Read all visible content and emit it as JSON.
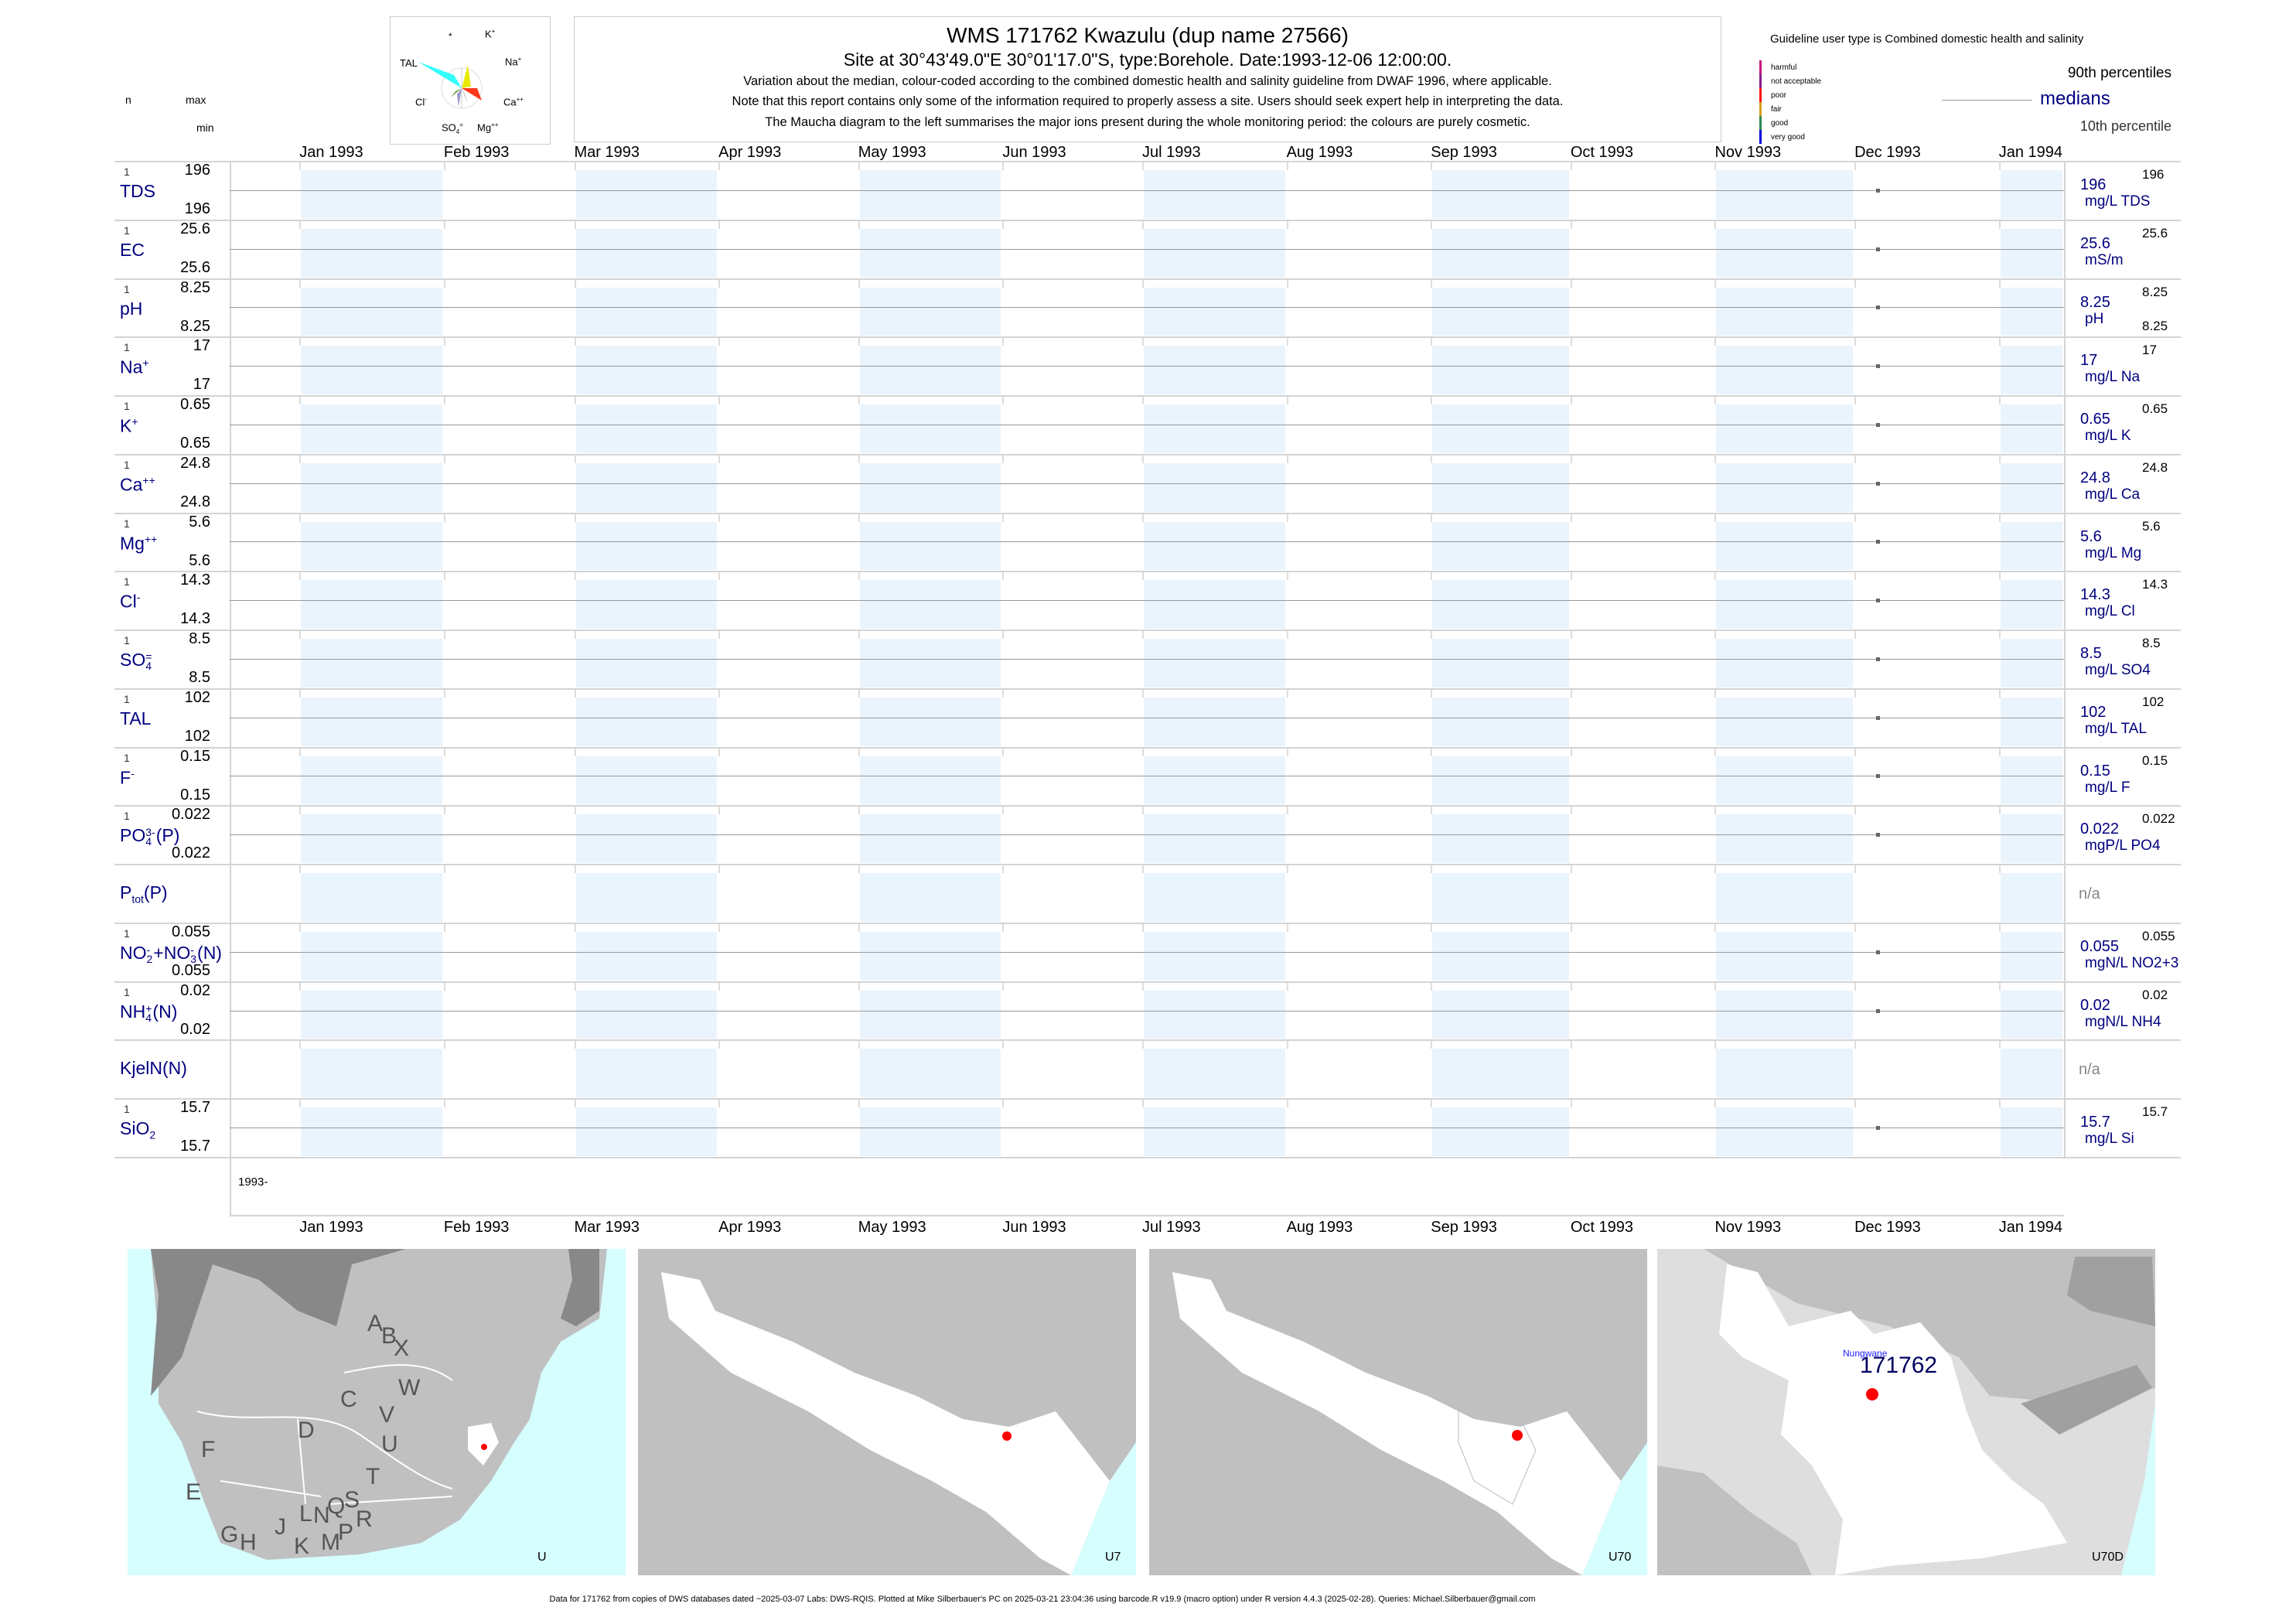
{
  "header": {
    "title": "WMS 171762  Kwazulu (dup name 27566)",
    "subtitle": "Site at 30°43'49.0\"E 30°01'17.0\"S, type:Borehole. Date:1993-12-06 12:00:00.",
    "note1": "Variation about the median,  colour-coded according to the combined domestic health and salinity guideline from DWAF 1996, where applicable.",
    "note2": "Note that this report contains only some of the information required to properly assess a site. Users should seek expert help in interpreting the data.",
    "note3": "The Maucha diagram to the left summarises the major ions present during the whole monitoring period: the colours are purely cosmetic."
  },
  "maucha": {
    "labels": {
      "star": "*",
      "k": "K",
      "k_sup": "+",
      "tal": "TAL",
      "na": "Na",
      "na_sup": "+",
      "cl": "Cl",
      "cl_sup": "-",
      "ca": "Ca",
      "ca_sup": "++",
      "so4": "SO",
      "so4_sub": "4",
      "so4_sup": "=",
      "mg": "Mg",
      "mg_sup": "++"
    }
  },
  "legend": {
    "guideline": "Guideline user type is Combined domestic health and salinity",
    "classes": [
      {
        "label": "harmful",
        "color": "#c8187c"
      },
      {
        "label": "not acceptable",
        "color": "#8b1a8b"
      },
      {
        "label": "poor",
        "color": "#ff1010"
      },
      {
        "label": "fair",
        "color": "#d4a017"
      },
      {
        "label": "good",
        "color": "#2e8b57"
      },
      {
        "label": "very good",
        "color": "#0000e0"
      }
    ],
    "p90": "90th percentiles",
    "medians": "medians",
    "p10": "10th percentile"
  },
  "column_heads": {
    "n": "n",
    "max": "max",
    "min": "min"
  },
  "axis": {
    "start": "1992-12-17",
    "end": "1994-01-15",
    "months": [
      {
        "label": "Jan 1993",
        "date": "1993-01-01",
        "shaded": true
      },
      {
        "label": "Feb 1993",
        "date": "1993-02-01",
        "shaded": false
      },
      {
        "label": "Mar 1993",
        "date": "1993-03-01",
        "shaded": true
      },
      {
        "label": "Apr 1993",
        "date": "1993-04-01",
        "shaded": false
      },
      {
        "label": "May 1993",
        "date": "1993-05-01",
        "shaded": true
      },
      {
        "label": "Jun 1993",
        "date": "1993-06-01",
        "shaded": false
      },
      {
        "label": "Jul 1993",
        "date": "1993-07-01",
        "shaded": true
      },
      {
        "label": "Aug 1993",
        "date": "1993-08-01",
        "shaded": false
      },
      {
        "label": "Sep 1993",
        "date": "1993-09-01",
        "shaded": true
      },
      {
        "label": "Oct 1993",
        "date": "1993-10-01",
        "shaded": false
      },
      {
        "label": "Nov 1993",
        "date": "1993-11-01",
        "shaded": true
      },
      {
        "label": "Dec 1993",
        "date": "1993-12-01",
        "shaded": false
      },
      {
        "label": "Jan 1994",
        "date": "1994-01-01",
        "shaded": true
      }
    ],
    "year_label": "1993-",
    "sample_date": "1993-12-06"
  },
  "rows": [
    {
      "label": [
        {
          "t": "TDS"
        }
      ],
      "n": "1",
      "max": "196",
      "min": "196",
      "median": "196",
      "unit": "mg/L TDS",
      "p90": "196"
    },
    {
      "label": [
        {
          "t": "EC"
        }
      ],
      "n": "1",
      "max": "25.6",
      "min": "25.6",
      "median": "25.6",
      "unit": "mS/m",
      "p90": "25.6"
    },
    {
      "label": [
        {
          "t": "pH"
        }
      ],
      "n": "1",
      "max": "8.25",
      "min": "8.25",
      "median": "8.25",
      "unit": "pH",
      "p90": "8.25",
      "p10": "8.25"
    },
    {
      "label": [
        {
          "t": "Na"
        },
        {
          "sup": "+"
        }
      ],
      "n": "1",
      "max": "17",
      "min": "17",
      "median": "17",
      "unit": "mg/L Na",
      "p90": "17"
    },
    {
      "label": [
        {
          "t": "K"
        },
        {
          "sup": "+"
        }
      ],
      "n": "1",
      "max": "0.65",
      "min": "0.65",
      "median": "0.65",
      "unit": "mg/L K",
      "p90": "0.65"
    },
    {
      "label": [
        {
          "t": "Ca"
        },
        {
          "sup": "++"
        }
      ],
      "n": "1",
      "max": "24.8",
      "min": "24.8",
      "median": "24.8",
      "unit": "mg/L Ca",
      "p90": "24.8"
    },
    {
      "label": [
        {
          "t": "Mg"
        },
        {
          "sup": "++"
        }
      ],
      "n": "1",
      "max": "5.6",
      "min": "5.6",
      "median": "5.6",
      "unit": "mg/L Mg",
      "p90": "5.6"
    },
    {
      "label": [
        {
          "t": "Cl"
        },
        {
          "sup": "-"
        }
      ],
      "n": "1",
      "max": "14.3",
      "min": "14.3",
      "median": "14.3",
      "unit": "mg/L Cl",
      "p90": "14.3"
    },
    {
      "label": [
        {
          "t": "SO"
        },
        {
          "sup": "=",
          "sub": "4"
        }
      ],
      "n": "1",
      "max": "8.5",
      "min": "8.5",
      "median": "8.5",
      "unit": "mg/L SO4",
      "p90": "8.5"
    },
    {
      "label": [
        {
          "t": "TAL"
        }
      ],
      "n": "1",
      "max": "102",
      "min": "102",
      "median": "102",
      "unit": "mg/L TAL",
      "p90": "102"
    },
    {
      "label": [
        {
          "t": "F"
        },
        {
          "sup": "-"
        }
      ],
      "n": "1",
      "max": "0.15",
      "min": "0.15",
      "median": "0.15",
      "unit": "mg/L F",
      "p90": "0.15"
    },
    {
      "label": [
        {
          "t": "PO"
        },
        {
          "sup": "3-",
          "sub": "4"
        },
        {
          "t": "(P)"
        }
      ],
      "n": "1",
      "max": "0.022",
      "min": "0.022",
      "median": "0.022",
      "unit": "mgP/L PO4",
      "p90": "0.022"
    },
    {
      "label": [
        {
          "t": "P"
        },
        {
          "sub": "tot"
        },
        {
          "t": "(P)"
        }
      ],
      "na": "n/a"
    },
    {
      "label": [
        {
          "t": "NO"
        },
        {
          "sup": "-",
          "sub": "2"
        },
        {
          "t": "+NO"
        },
        {
          "sup": "-",
          "sub": "3"
        },
        {
          "t": "(N)"
        }
      ],
      "n": "1",
      "max": "0.055",
      "min": "0.055",
      "median": "0.055",
      "unit": "mgN/L NO2+3",
      "p90": "0.055"
    },
    {
      "label": [
        {
          "t": "NH"
        },
        {
          "sup": "+",
          "sub": "4"
        },
        {
          "t": "(N)"
        }
      ],
      "n": "1",
      "max": "0.02",
      "min": "0.02",
      "median": "0.02",
      "unit": "mgN/L NH4",
      "p90": "0.02"
    },
    {
      "label": [
        {
          "t": "KjelN(N)"
        }
      ],
      "na": "n/a"
    },
    {
      "label": [
        {
          "t": "SiO"
        },
        {
          "sub": "2"
        }
      ],
      "n": "1",
      "max": "15.7",
      "min": "15.7",
      "median": "15.7",
      "unit": "mg/L Si",
      "p90": "15.7"
    }
  ],
  "maps": {
    "m1": {
      "caption": "U",
      "letters": [
        "A",
        "B",
        "X",
        "W",
        "C",
        "V",
        "D",
        "U",
        "F",
        "T",
        "E",
        "S",
        "Q",
        "R",
        "N",
        "L",
        "J",
        "P",
        "G",
        "H",
        "K",
        "M"
      ]
    },
    "m2": {
      "caption": "U7"
    },
    "m3": {
      "caption": "U70"
    },
    "m4": {
      "caption": "U70D",
      "place": "Nungwane",
      "site": "171762"
    }
  },
  "colors": {
    "navy": "#000080",
    "band": "#eaf4fd",
    "sea": "#d6fefe",
    "site": "#ff0000"
  },
  "footer": "Data for 171762 from copies of DWS databases dated ~2025-03-07 Labs: DWS-RQIS. Plotted at Mike Silberbauer's PC on 2025-03-21 23:04:36 using barcode.R v19.9 (macro option) under R version 4.4.3 (2025-02-28). Queries: Michael.Silberbauer@gmail.com"
}
